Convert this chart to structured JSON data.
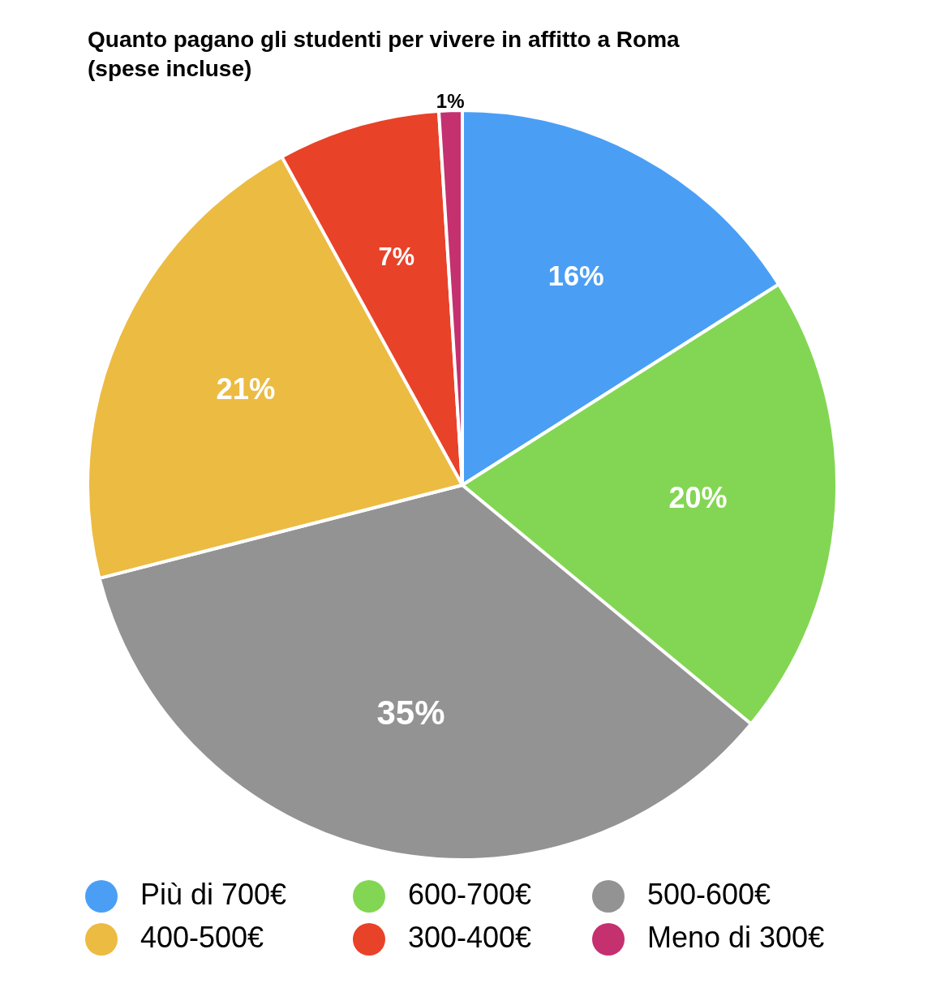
{
  "chart_data": {
    "type": "pie",
    "title": "Quanto pagano gli studenti per vivere in affitto a Roma (spese incluse)",
    "categories": [
      "Più di 700€",
      "600-700€",
      "500-600€",
      "400-500€",
      "300-400€",
      "Meno di 300€"
    ],
    "values": [
      16,
      20,
      35,
      21,
      7,
      1
    ],
    "colors": [
      "#4a9ff5",
      "#83d653",
      "#939393",
      "#ecbb42",
      "#e84229",
      "#c5306f"
    ],
    "value_labels": [
      "16%",
      "20%",
      "35%",
      "21%",
      "7%",
      "1%"
    ],
    "legend": "bottom"
  }
}
